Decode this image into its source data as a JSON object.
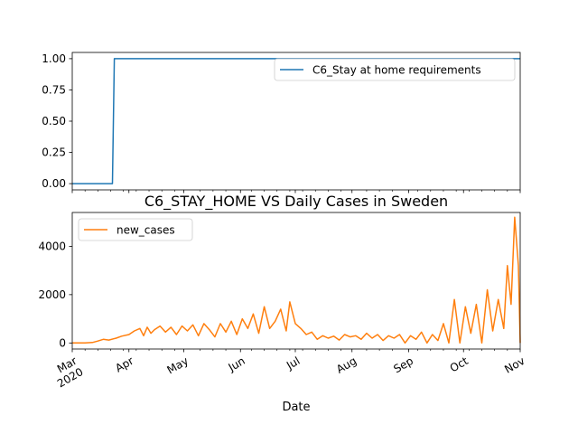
{
  "chart_data": [
    {
      "type": "line",
      "title": "",
      "xlabel": "",
      "ylabel": "",
      "ylim": [
        -0.05,
        1.05
      ],
      "yticks": [
        0.0,
        0.25,
        0.5,
        0.75,
        1.0
      ],
      "ytick_labels": [
        "0.00",
        "0.25",
        "0.50",
        "0.75",
        "1.00"
      ],
      "legend": "top-right",
      "grid": false,
      "series": [
        {
          "name": "C6_Stay at home requirements",
          "color": "#1f77b4",
          "x": [
            "2020-03-01",
            "2020-03-23",
            "2020-03-24",
            "2020-11-01"
          ],
          "values": [
            0,
            0,
            1,
            1
          ]
        }
      ]
    },
    {
      "type": "line",
      "title": "C6_STAY_HOME VS Daily Cases in Sweden",
      "xlabel": "Date",
      "ylabel": "",
      "ylim": [
        -250,
        5400
      ],
      "yticks": [
        0,
        2000,
        4000
      ],
      "ytick_labels": [
        "0",
        "2000",
        "4000"
      ],
      "xlim": [
        "2020-03-01",
        "2020-11-01"
      ],
      "xticks": [
        "2020-03-01",
        "2020-04-01",
        "2020-05-01",
        "2020-06-01",
        "2020-07-01",
        "2020-08-01",
        "2020-09-01",
        "2020-10-01",
        "2020-11-01"
      ],
      "xtick_labels": [
        "Mar\n2020",
        "Apr",
        "May",
        "Jun",
        "Jul",
        "Aug",
        "Sep",
        "Oct",
        "Nov"
      ],
      "legend": "top-left",
      "grid": false,
      "series": [
        {
          "name": "new_cases",
          "color": "#ff7f0e",
          "x": [
            "2020-03-01",
            "2020-03-08",
            "2020-03-12",
            "2020-03-15",
            "2020-03-18",
            "2020-03-21",
            "2020-03-25",
            "2020-03-28",
            "2020-04-01",
            "2020-04-04",
            "2020-04-07",
            "2020-04-09",
            "2020-04-11",
            "2020-04-13",
            "2020-04-15",
            "2020-04-18",
            "2020-04-21",
            "2020-04-24",
            "2020-04-27",
            "2020-04-30",
            "2020-05-03",
            "2020-05-06",
            "2020-05-09",
            "2020-05-12",
            "2020-05-15",
            "2020-05-18",
            "2020-05-21",
            "2020-05-24",
            "2020-05-27",
            "2020-05-30",
            "2020-06-02",
            "2020-06-05",
            "2020-06-08",
            "2020-06-11",
            "2020-06-14",
            "2020-06-17",
            "2020-06-20",
            "2020-06-23",
            "2020-06-26",
            "2020-06-28",
            "2020-07-01",
            "2020-07-04",
            "2020-07-07",
            "2020-07-10",
            "2020-07-13",
            "2020-07-16",
            "2020-07-19",
            "2020-07-22",
            "2020-07-25",
            "2020-07-28",
            "2020-07-31",
            "2020-08-03",
            "2020-08-06",
            "2020-08-09",
            "2020-08-12",
            "2020-08-15",
            "2020-08-18",
            "2020-08-21",
            "2020-08-24",
            "2020-08-27",
            "2020-08-30",
            "2020-09-02",
            "2020-09-05",
            "2020-09-08",
            "2020-09-11",
            "2020-09-14",
            "2020-09-17",
            "2020-09-20",
            "2020-09-23",
            "2020-09-26",
            "2020-09-29",
            "2020-10-02",
            "2020-10-05",
            "2020-10-08",
            "2020-10-11",
            "2020-10-14",
            "2020-10-17",
            "2020-10-20",
            "2020-10-23",
            "2020-10-25",
            "2020-10-27",
            "2020-10-29",
            "2020-10-31",
            "2020-11-01"
          ],
          "values": [
            0,
            5,
            20,
            80,
            150,
            120,
            200,
            280,
            350,
            500,
            600,
            300,
            650,
            400,
            550,
            700,
            450,
            650,
            350,
            700,
            500,
            750,
            300,
            800,
            550,
            250,
            800,
            450,
            900,
            350,
            1000,
            600,
            1200,
            400,
            1500,
            600,
            900,
            1400,
            500,
            1700,
            800,
            600,
            350,
            450,
            150,
            300,
            200,
            280,
            120,
            350,
            250,
            300,
            150,
            400,
            200,
            350,
            100,
            300,
            200,
            350,
            0,
            300,
            150,
            450,
            0,
            350,
            100,
            800,
            0,
            1800,
            0,
            1500,
            400,
            1600,
            0,
            2200,
            500,
            1800,
            600,
            3200,
            1600,
            5200,
            3200,
            0
          ]
        }
      ]
    }
  ]
}
